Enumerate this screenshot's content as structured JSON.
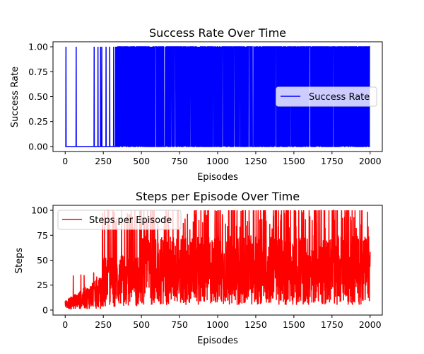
{
  "chart_data": [
    {
      "type": "line",
      "title": "Success Rate Over Time",
      "xlabel": "Episodes",
      "ylabel": "Success Rate",
      "xlim": [
        -80,
        2080
      ],
      "ylim": [
        -0.05,
        1.05
      ],
      "xticks": [
        "0",
        "250",
        "500",
        "750",
        "1000",
        "1250",
        "1500",
        "1750",
        "2000"
      ],
      "yticks": [
        "0.00",
        "0.25",
        "0.50",
        "0.75",
        "1.00"
      ],
      "grid": false,
      "legend": "center-right",
      "series": [
        {
          "name": "Success Rate",
          "color": "#0000ff",
          "x_range": [
            0,
            2000
          ],
          "values_description": "binary 0/1 per episode",
          "success_episodes_sparse": [
            5,
            72,
            190,
            215,
            232,
            240,
            268,
            292,
            318
          ],
          "dense_from_episode": 330
        }
      ]
    },
    {
      "type": "line",
      "title": "Steps per Episode Over Time",
      "xlabel": "Episodes",
      "ylabel": "Steps",
      "xlim": [
        -80,
        2080
      ],
      "ylim": [
        -5,
        105
      ],
      "xticks": [
        "0",
        "250",
        "500",
        "750",
        "1000",
        "1250",
        "1500",
        "1750",
        "2000"
      ],
      "yticks": [
        "0",
        "25",
        "50",
        "75",
        "100"
      ],
      "grid": false,
      "legend": "top-left",
      "series": [
        {
          "name": "Steps per Episode",
          "color": "#ff0000",
          "x_range": [
            0,
            2000
          ],
          "min": 1,
          "max": 100,
          "trend": "starts near 2-35, rises to 10-100 after episode 250"
        }
      ]
    }
  ]
}
